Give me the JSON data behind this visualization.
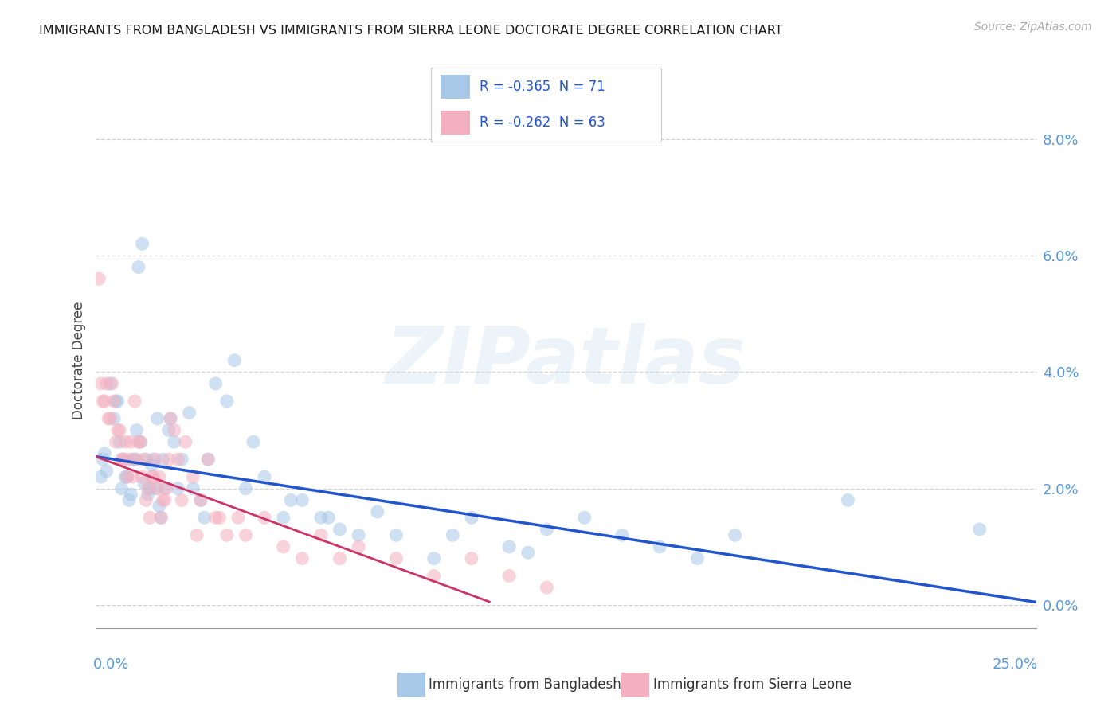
{
  "title": "IMMIGRANTS FROM BANGLADESH VS IMMIGRANTS FROM SIERRA LEONE DOCTORATE DEGREE CORRELATION CHART",
  "source": "Source: ZipAtlas.com",
  "ylabel": "Doctorate Degree",
  "right_yvalues": [
    0.0,
    2.0,
    4.0,
    6.0,
    8.0
  ],
  "xlim": [
    0.0,
    25.0
  ],
  "ylim": [
    -0.4,
    8.8
  ],
  "legend1_text": "R = -0.365  N = 71",
  "legend2_text": "R = -0.262  N = 63",
  "color_bangladesh": "#a8c8e8",
  "color_sierra_leone": "#f4b0c0",
  "color_line_bangladesh": "#2255cc",
  "color_line_sierra_leone": "#cc3366",
  "background_color": "#ffffff",
  "grid_color": "#cccccc",
  "bangladesh_x": [
    0.2,
    0.3,
    0.5,
    0.6,
    0.7,
    0.8,
    0.9,
    1.0,
    1.1,
    1.2,
    1.3,
    1.4,
    1.5,
    1.6,
    1.7,
    1.8,
    2.0,
    2.2,
    2.5,
    2.8,
    3.0,
    3.5,
    4.0,
    4.5,
    5.0,
    5.5,
    6.0,
    6.5,
    7.0,
    8.0,
    9.0,
    10.0,
    11.0,
    12.0,
    13.0,
    14.0,
    15.0,
    17.0,
    20.0,
    23.5,
    0.15,
    0.25,
    0.4,
    0.55,
    0.65,
    0.75,
    0.85,
    0.95,
    1.05,
    1.15,
    1.25,
    1.35,
    1.45,
    1.55,
    1.65,
    1.75,
    1.85,
    1.95,
    2.1,
    2.3,
    2.6,
    2.9,
    3.2,
    3.7,
    4.2,
    5.2,
    6.2,
    7.5,
    9.5,
    11.5,
    16.0
  ],
  "bangladesh_y": [
    2.5,
    2.3,
    3.2,
    3.5,
    2.0,
    2.2,
    1.8,
    2.5,
    3.0,
    2.8,
    2.1,
    1.9,
    2.4,
    2.0,
    1.7,
    2.5,
    3.2,
    2.0,
    3.3,
    1.8,
    2.5,
    3.5,
    2.0,
    2.2,
    1.5,
    1.8,
    1.5,
    1.3,
    1.2,
    1.2,
    0.8,
    1.5,
    1.0,
    1.3,
    1.5,
    1.2,
    1.0,
    1.2,
    1.8,
    1.3,
    2.2,
    2.6,
    3.8,
    3.5,
    2.8,
    2.5,
    2.2,
    1.9,
    2.5,
    5.8,
    6.2,
    2.5,
    2.0,
    2.5,
    3.2,
    1.5,
    2.0,
    3.0,
    2.8,
    2.5,
    2.0,
    1.5,
    3.8,
    4.2,
    2.8,
    1.8,
    1.5,
    1.6,
    1.2,
    0.9,
    0.8
  ],
  "sierra_leone_x": [
    0.1,
    0.2,
    0.3,
    0.4,
    0.5,
    0.6,
    0.7,
    0.8,
    0.9,
    1.0,
    1.1,
    1.2,
    1.3,
    1.4,
    1.5,
    1.6,
    1.7,
    1.8,
    1.9,
    2.0,
    2.2,
    2.4,
    2.6,
    2.8,
    3.0,
    3.2,
    3.5,
    3.8,
    4.0,
    4.5,
    5.0,
    5.5,
    6.0,
    6.5,
    7.0,
    8.0,
    9.0,
    10.0,
    11.0,
    12.0,
    0.15,
    0.25,
    0.35,
    0.45,
    0.55,
    0.65,
    0.75,
    0.85,
    0.95,
    1.05,
    1.15,
    1.25,
    1.35,
    1.45,
    1.55,
    1.65,
    1.75,
    1.85,
    1.95,
    2.1,
    2.3,
    2.7,
    3.3
  ],
  "sierra_leone_y": [
    5.6,
    3.5,
    3.8,
    3.2,
    3.5,
    3.0,
    2.5,
    2.8,
    2.5,
    2.2,
    2.5,
    2.8,
    2.5,
    2.0,
    2.2,
    2.5,
    2.2,
    1.8,
    2.0,
    3.2,
    2.5,
    2.8,
    2.2,
    1.8,
    2.5,
    1.5,
    1.2,
    1.5,
    1.2,
    1.5,
    1.0,
    0.8,
    1.2,
    0.8,
    1.0,
    0.8,
    0.5,
    0.8,
    0.5,
    0.3,
    3.8,
    3.5,
    3.2,
    3.8,
    2.8,
    3.0,
    2.5,
    2.2,
    2.8,
    3.5,
    2.8,
    2.2,
    1.8,
    1.5,
    2.2,
    2.0,
    1.5,
    1.8,
    2.5,
    3.0,
    1.8,
    1.2,
    1.5
  ],
  "line_bangladesh_x0": 0.0,
  "line_bangladesh_x1": 25.0,
  "line_bangladesh_y0": 2.55,
  "line_bangladesh_y1": 0.05,
  "line_sierra_x0": 0.0,
  "line_sierra_x1": 10.5,
  "line_sierra_y0": 2.55,
  "line_sierra_y1": 0.05
}
